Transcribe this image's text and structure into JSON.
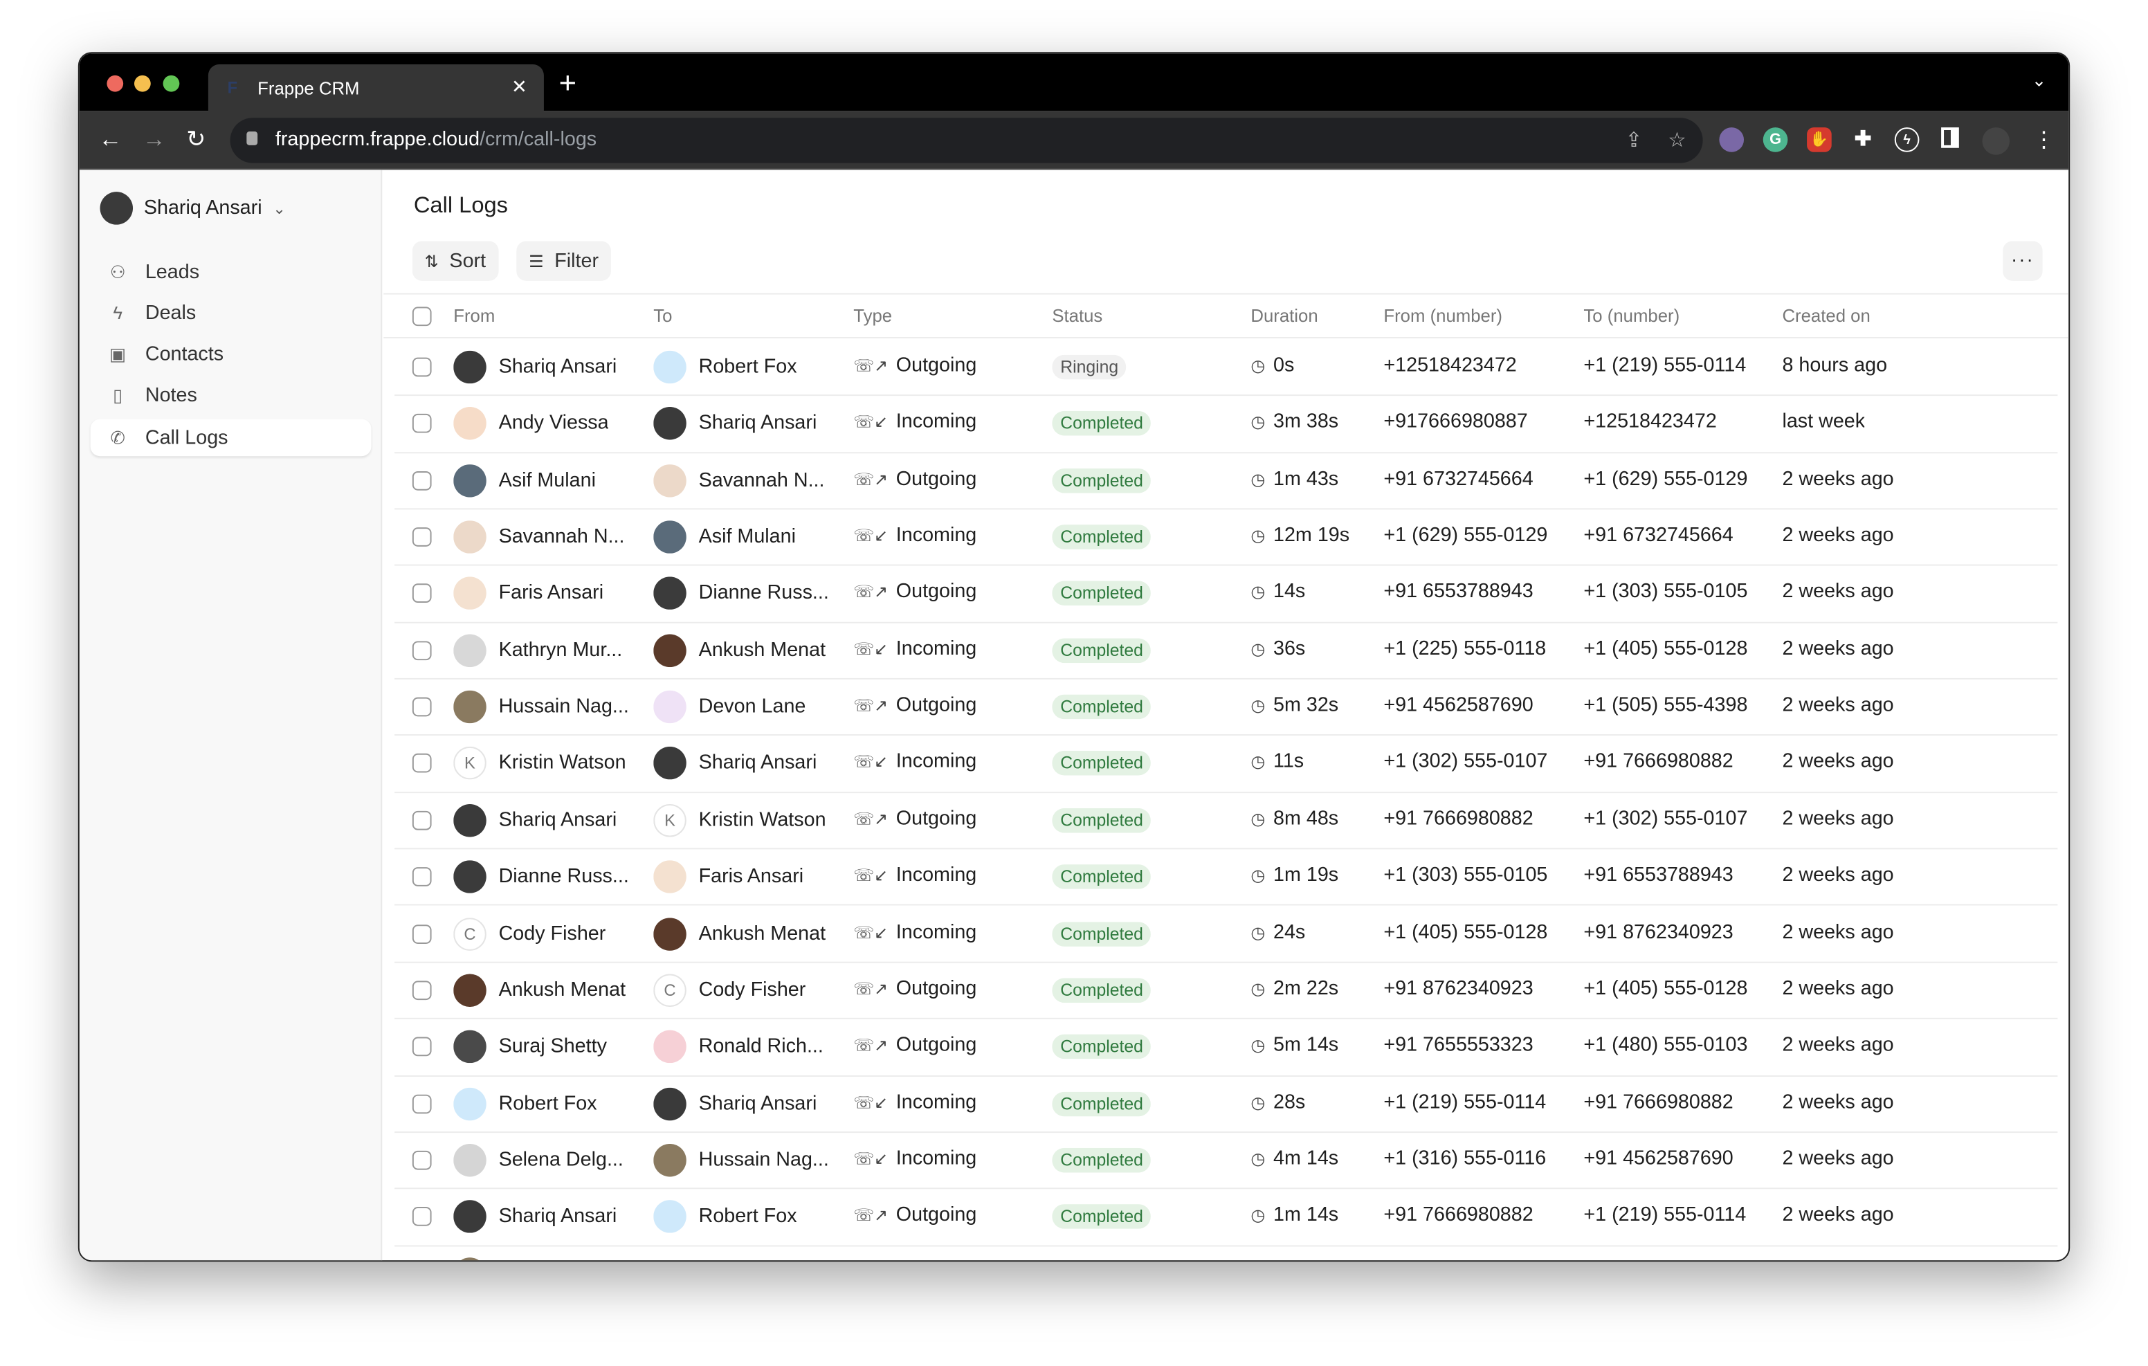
{
  "browser": {
    "tab_title": "Frappe CRM",
    "tab_favicon": "F",
    "url_host": "frappecrm.frappe.cloud",
    "url_path": "/crm/call-logs"
  },
  "sidebar": {
    "user_name": "Shariq Ansari",
    "items": [
      {
        "label": "Leads",
        "icon": "users-icon"
      },
      {
        "label": "Deals",
        "icon": "lightning-icon"
      },
      {
        "label": "Contacts",
        "icon": "contact-card-icon"
      },
      {
        "label": "Notes",
        "icon": "note-icon"
      },
      {
        "label": "Call Logs",
        "icon": "phone-icon",
        "active": true
      }
    ]
  },
  "main": {
    "title": "Call Logs",
    "sort_label": "Sort",
    "filter_label": "Filter",
    "columns": [
      "From",
      "To",
      "Type",
      "Status",
      "Duration",
      "From (number)",
      "To (number)",
      "Created on"
    ]
  },
  "colors": {
    "completed_bg": "#e4f2e4",
    "completed_text": "#2f7a3e",
    "ringing_bg": "#f1f1f1",
    "ringing_text": "#555555"
  },
  "rows": [
    {
      "from": "Shariq Ansari",
      "from_av": "#3a3a3a",
      "to": "Robert Fox",
      "to_av": "#cfe9fb",
      "type": "Outgoing",
      "status": "Ringing",
      "duration": "0s",
      "from_number": "+12518423472",
      "to_number": "+1 (219) 555-0114",
      "created": "8 hours ago"
    },
    {
      "from": "Andy Viessa",
      "from_av": "#f6dcc8",
      "to": "Shariq Ansari",
      "to_av": "#3a3a3a",
      "type": "Incoming",
      "status": "Completed",
      "duration": "3m 38s",
      "from_number": "+917666980887",
      "to_number": "+12518423472",
      "created": "last week"
    },
    {
      "from": "Asif Mulani",
      "from_av": "#5a6b7a",
      "to": "Savannah N...",
      "to_av": "#ecd9c9",
      "type": "Outgoing",
      "status": "Completed",
      "duration": "1m 43s",
      "from_number": "+91 6732745664",
      "to_number": "+1 (629) 555-0129",
      "created": "2 weeks ago"
    },
    {
      "from": "Savannah N...",
      "from_av": "#ecd9c9",
      "to": "Asif Mulani",
      "to_av": "#5a6b7a",
      "type": "Incoming",
      "status": "Completed",
      "duration": "12m 19s",
      "from_number": "+1 (629) 555-0129",
      "to_number": "+91 6732745664",
      "created": "2 weeks ago"
    },
    {
      "from": "Faris Ansari",
      "from_av": "#f4e1d0",
      "to": "Dianne Russ...",
      "to_av": "#3b3b3b",
      "type": "Outgoing",
      "status": "Completed",
      "duration": "14s",
      "from_number": "+91 6553788943",
      "to_number": "+1 (303) 555-0105",
      "created": "2 weeks ago"
    },
    {
      "from": "Kathryn Mur...",
      "from_av": "#d8d8d8",
      "to": "Ankush Menat",
      "to_av": "#5a3a2a",
      "type": "Incoming",
      "status": "Completed",
      "duration": "36s",
      "from_number": "+1 (225) 555-0118",
      "to_number": "+1 (405) 555-0128",
      "created": "2 weeks ago"
    },
    {
      "from": "Hussain Nag...",
      "from_av": "#8a7a60",
      "to": "Devon Lane",
      "to_av": "#efe2f6",
      "type": "Outgoing",
      "status": "Completed",
      "duration": "5m 32s",
      "from_number": "+91 4562587690",
      "to_number": "+1 (505) 555-4398",
      "created": "2 weeks ago"
    },
    {
      "from": "Kristin Watson",
      "from_initial": "K",
      "to": "Shariq Ansari",
      "to_av": "#3a3a3a",
      "type": "Incoming",
      "status": "Completed",
      "duration": "11s",
      "from_number": "+1 (302) 555-0107",
      "to_number": "+91 7666980882",
      "created": "2 weeks ago"
    },
    {
      "from": "Shariq Ansari",
      "from_av": "#3a3a3a",
      "to": "Kristin Watson",
      "to_initial": "K",
      "type": "Outgoing",
      "status": "Completed",
      "duration": "8m 48s",
      "from_number": "+91 7666980882",
      "to_number": "+1 (302) 555-0107",
      "created": "2 weeks ago"
    },
    {
      "from": "Dianne Russ...",
      "from_av": "#3b3b3b",
      "to": "Faris Ansari",
      "to_av": "#f4e1d0",
      "type": "Incoming",
      "status": "Completed",
      "duration": "1m 19s",
      "from_number": "+1 (303) 555-0105",
      "to_number": "+91 6553788943",
      "created": "2 weeks ago"
    },
    {
      "from": "Cody Fisher",
      "from_initial": "C",
      "to": "Ankush Menat",
      "to_av": "#5a3a2a",
      "type": "Incoming",
      "status": "Completed",
      "duration": "24s",
      "from_number": "+1 (405) 555-0128",
      "to_number": "+91 8762340923",
      "created": "2 weeks ago"
    },
    {
      "from": "Ankush Menat",
      "from_av": "#5a3a2a",
      "to": "Cody Fisher",
      "to_initial": "C",
      "type": "Outgoing",
      "status": "Completed",
      "duration": "2m 22s",
      "from_number": "+91 8762340923",
      "to_number": "+1 (405) 555-0128",
      "created": "2 weeks ago"
    },
    {
      "from": "Suraj Shetty",
      "from_av": "#4a4a4a",
      "to": "Ronald Rich...",
      "to_av": "#f6d0d6",
      "type": "Outgoing",
      "status": "Completed",
      "duration": "5m 14s",
      "from_number": "+91 7655553323",
      "to_number": "+1 (480) 555-0103",
      "created": "2 weeks ago"
    },
    {
      "from": "Robert Fox",
      "from_av": "#cfe9fb",
      "to": "Shariq Ansari",
      "to_av": "#3a3a3a",
      "type": "Incoming",
      "status": "Completed",
      "duration": "28s",
      "from_number": "+1 (219) 555-0114",
      "to_number": "+91 7666980882",
      "created": "2 weeks ago"
    },
    {
      "from": "Selena Delg...",
      "from_av": "#d5d5d5",
      "to": "Hussain Nag...",
      "to_av": "#8a7a60",
      "type": "Incoming",
      "status": "Completed",
      "duration": "4m 14s",
      "from_number": "+1 (316) 555-0116",
      "to_number": "+91 4562587690",
      "created": "2 weeks ago"
    },
    {
      "from": "Shariq Ansari",
      "from_av": "#3a3a3a",
      "to": "Robert Fox",
      "to_av": "#cfe9fb",
      "type": "Outgoing",
      "status": "Completed",
      "duration": "1m 14s",
      "from_number": "+91 7666980882",
      "to_number": "+1 (219) 555-0114",
      "created": "2 weeks ago"
    }
  ]
}
